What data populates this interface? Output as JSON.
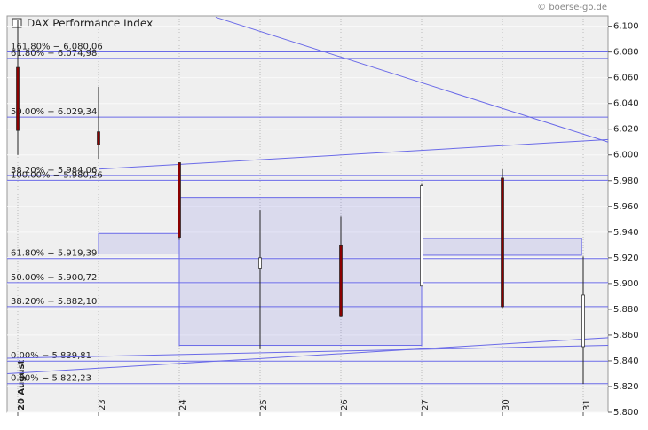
{
  "chart_data": {
    "type": "candlestick",
    "title": "DAX Performance Index",
    "source": "© boerse-go.de",
    "categories": [
      "20 August",
      "23",
      "24",
      "25",
      "26",
      "27",
      "30",
      "31"
    ],
    "open": [
      6068,
      6018,
      5994,
      5912,
      5930,
      5898,
      5982,
      5851
    ],
    "high": [
      6105,
      6053,
      5994,
      5957,
      5952,
      5978,
      5989,
      5921
    ],
    "low": [
      6000,
      5997,
      5934,
      5849,
      5874,
      5898,
      5881,
      5822
    ],
    "close": [
      6019,
      6008,
      5936,
      5920,
      5875,
      5976,
      5882,
      5891
    ],
    "up_color": "#ffffff",
    "down_color": "#8b0000",
    "ylim": [
      5800,
      6108
    ],
    "yticks": [
      {
        "value": 5800,
        "label": "5.800"
      },
      {
        "value": 5820,
        "label": "5.820"
      },
      {
        "value": 5840,
        "label": "5.840"
      },
      {
        "value": 5860,
        "label": "5.860"
      },
      {
        "value": 5880,
        "label": "5.880"
      },
      {
        "value": 5900,
        "label": "5.900"
      },
      {
        "value": 5920,
        "label": "5.920"
      },
      {
        "value": 5940,
        "label": "5.940"
      },
      {
        "value": 5960,
        "label": "5.960"
      },
      {
        "value": 5980,
        "label": "5.980"
      },
      {
        "value": 6000,
        "label": "6.000"
      },
      {
        "value": 6020,
        "label": "6.020"
      },
      {
        "value": 6040,
        "label": "6.040"
      },
      {
        "value": 6060,
        "label": "6.060"
      },
      {
        "value": 6080,
        "label": "6.080"
      },
      {
        "value": 6100,
        "label": "6.100"
      }
    ],
    "grid": true,
    "overlay_color": "#6a6ae8",
    "levels": [
      {
        "label": "161.80% − 6.080,06",
        "value": 6080.06
      },
      {
        "label": "61.80% − 6.074,98",
        "value": 6074.98
      },
      {
        "label": "50.00% − 6.029,34",
        "value": 6029.34
      },
      {
        "label": "38.20% − 5.984,06",
        "value": 5984.06
      },
      {
        "label": "100.00% − 5.980,26",
        "value": 5980.26
      },
      {
        "label": "61.80% − 5.919,39",
        "value": 5919.39
      },
      {
        "label": "50.00% − 5.900,72",
        "value": 5900.72
      },
      {
        "label": "38.20% − 5.882,10",
        "value": 5882.1
      },
      {
        "label": "0.00% − 5.839,81",
        "value": 5839.81
      },
      {
        "label": "0.00% − 5.822,23",
        "value": 5822.23
      }
    ],
    "zones": [
      {
        "x": [
          1,
          2
        ],
        "y": [
          5923,
          5939
        ]
      },
      {
        "x": [
          2,
          5
        ],
        "y": [
          5852,
          5967
        ]
      },
      {
        "x": [
          5,
          6.98
        ],
        "y": [
          5922,
          5935
        ]
      }
    ],
    "trend_lines": [
      {
        "x": [
          2.45,
          7.31
        ],
        "y": [
          6107,
          6010
        ]
      },
      {
        "x": [
          1,
          7.31
        ],
        "y": [
          5989,
          6012
        ]
      },
      {
        "x": [
          -0.13,
          7.31
        ],
        "y": [
          5830,
          5858
        ]
      },
      {
        "x": [
          -0.13,
          7.31
        ],
        "y": [
          5842,
          5852
        ]
      }
    ]
  }
}
